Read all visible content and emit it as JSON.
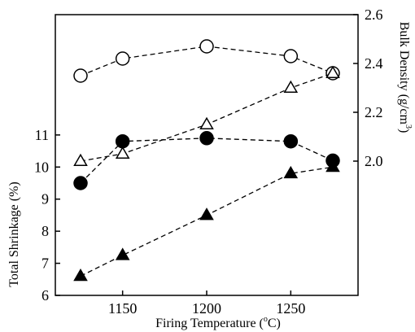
{
  "chart_data": {
    "type": "scatter",
    "x_axis": {
      "label": "Firing Temperature (",
      "label_sup": "o",
      "label_tail": "C)",
      "min": 1110,
      "max": 1290,
      "ticks": [
        1150,
        1200,
        1250
      ]
    },
    "y_left": {
      "label": "Total Shrinkage (%)",
      "min": 6,
      "max": 14.75,
      "ticks": [
        6,
        7,
        8,
        9,
        10,
        11
      ]
    },
    "y_right": {
      "label": "Bulk Density (g/cm",
      "label_sup": "3",
      "label_tail": ")",
      "min": 1.45,
      "max": 2.6,
      "ticks": [
        2.0,
        2.2,
        2.4,
        2.6
      ]
    },
    "series": [
      {
        "axis": "right",
        "marker": "circle",
        "filled": false,
        "points": [
          [
            1125,
            2.35
          ],
          [
            1150,
            2.42
          ],
          [
            1200,
            2.47
          ],
          [
            1250,
            2.43
          ],
          [
            1275,
            2.36
          ]
        ]
      },
      {
        "axis": "right",
        "marker": "triangle",
        "filled": false,
        "points": [
          [
            1125,
            2.0
          ],
          [
            1150,
            2.03
          ],
          [
            1200,
            2.15
          ],
          [
            1250,
            2.3
          ],
          [
            1275,
            2.36
          ]
        ]
      },
      {
        "axis": "left",
        "marker": "circle",
        "filled": true,
        "points": [
          [
            1125,
            9.5
          ],
          [
            1150,
            10.8
          ],
          [
            1200,
            10.9
          ],
          [
            1250,
            10.8
          ],
          [
            1275,
            10.2
          ]
        ]
      },
      {
        "axis": "left",
        "marker": "triangle",
        "filled": true,
        "points": [
          [
            1125,
            6.6
          ],
          [
            1150,
            7.25
          ],
          [
            1200,
            8.5
          ],
          [
            1250,
            9.8
          ],
          [
            1275,
            10.0
          ]
        ]
      }
    ],
    "grid": false,
    "line_style": "dashed"
  }
}
